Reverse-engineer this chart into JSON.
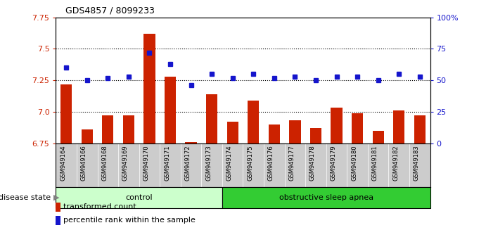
{
  "title": "GDS4857 / 8099233",
  "samples": [
    "GSM949164",
    "GSM949166",
    "GSM949168",
    "GSM949169",
    "GSM949170",
    "GSM949171",
    "GSM949172",
    "GSM949173",
    "GSM949174",
    "GSM949175",
    "GSM949176",
    "GSM949177",
    "GSM949178",
    "GSM949179",
    "GSM949180",
    "GSM949181",
    "GSM949182",
    "GSM949183"
  ],
  "bar_values": [
    7.22,
    6.86,
    6.97,
    6.97,
    7.62,
    7.28,
    6.76,
    7.14,
    6.92,
    7.09,
    6.9,
    6.93,
    6.87,
    7.03,
    6.99,
    6.85,
    7.01,
    6.97
  ],
  "blue_values": [
    60,
    50,
    52,
    53,
    72,
    63,
    46,
    55,
    52,
    55,
    52,
    53,
    50,
    53,
    53,
    50,
    55,
    53
  ],
  "control_count": 8,
  "ylim_left": [
    6.75,
    7.75
  ],
  "ylim_right": [
    0,
    100
  ],
  "yticks_left": [
    6.75,
    7.0,
    7.25,
    7.5,
    7.75
  ],
  "yticks_right": [
    0,
    25,
    50,
    75,
    100
  ],
  "ytick_labels_right": [
    "0",
    "25",
    "50",
    "75",
    "100%"
  ],
  "hlines": [
    7.0,
    7.25,
    7.5
  ],
  "bar_color": "#CC2200",
  "blue_color": "#1515CC",
  "bar_bottom": 6.75,
  "control_label": "control",
  "osa_label": "obstructive sleep apnea",
  "control_bg": "#CCFFCC",
  "osa_bg": "#33CC33",
  "disease_state_label": "disease state",
  "legend_bar_label": "transformed count",
  "legend_blue_label": "percentile rank within the sample",
  "bar_width": 0.55,
  "tick_bg_color": "#CCCCCC"
}
